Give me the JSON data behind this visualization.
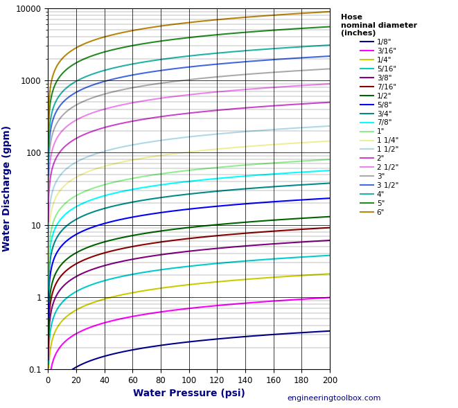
{
  "xlabel": "Water Pressure (psi)",
  "ylabel": "Water Discharge (gpm)",
  "xlim": [
    0,
    200
  ],
  "ylim": [
    0.1,
    10000
  ],
  "xticks": [
    0,
    20,
    40,
    60,
    80,
    100,
    120,
    140,
    160,
    180,
    200
  ],
  "legend_title": "Hose\nnominal diameter\n(inches)",
  "watermark": "engineeringtoolbox.com",
  "C": 5.68,
  "d_exp": 2.63,
  "p_exp": 0.5,
  "series": [
    {
      "label": "1/8\"",
      "diameter": 0.125,
      "color": "#00008B"
    },
    {
      "label": "3/16\"",
      "diameter": 0.1875,
      "color": "#FF00FF"
    },
    {
      "label": "1/4\"",
      "diameter": 0.25,
      "color": "#CCCC00"
    },
    {
      "label": "5/16\"",
      "diameter": 0.3125,
      "color": "#00CCCC"
    },
    {
      "label": "3/8\"",
      "diameter": 0.375,
      "color": "#800080"
    },
    {
      "label": "7/16\"",
      "diameter": 0.4375,
      "color": "#8B0000"
    },
    {
      "label": "1/2\"",
      "diameter": 0.5,
      "color": "#006400"
    },
    {
      "label": "5/8\"",
      "diameter": 0.625,
      "color": "#0000FF"
    },
    {
      "label": "3/4\"",
      "diameter": 0.75,
      "color": "#008B8B"
    },
    {
      "label": "7/8\"",
      "diameter": 0.875,
      "color": "#00FFFF"
    },
    {
      "label": "1\"",
      "diameter": 1.0,
      "color": "#90EE90"
    },
    {
      "label": "1 1/4\"",
      "diameter": 1.25,
      "color": "#EEEE99"
    },
    {
      "label": "1 1/2\"",
      "diameter": 1.5,
      "color": "#ADD8E6"
    },
    {
      "label": "2\"",
      "diameter": 2.0,
      "color": "#CC44CC"
    },
    {
      "label": "2 1/2\"",
      "diameter": 2.5,
      "color": "#EE82EE"
    },
    {
      "label": "3\"",
      "diameter": 3.0,
      "color": "#AAAAAA"
    },
    {
      "label": "3 1/2\"",
      "diameter": 3.5,
      "color": "#4169E1"
    },
    {
      "label": "4\"",
      "diameter": 4.0,
      "color": "#20B2AA"
    },
    {
      "label": "5\"",
      "diameter": 5.0,
      "color": "#228B22"
    },
    {
      "label": "6\"",
      "diameter": 6.0,
      "color": "#B8860B"
    }
  ]
}
